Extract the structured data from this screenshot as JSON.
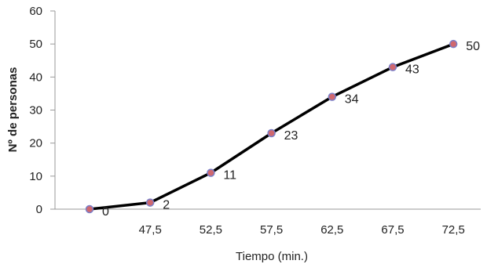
{
  "chart_data": {
    "type": "line",
    "title": "",
    "xlabel": "Tiempo (min.)",
    "ylabel": "Nº de personas",
    "categories": [
      "",
      "47,5",
      "52,5",
      "57,5",
      "62,5",
      "67,5",
      "72,5"
    ],
    "series": [
      {
        "values": [
          0,
          2,
          11,
          23,
          34,
          43,
          50
        ],
        "data_labels": [
          "0",
          "2",
          "11",
          "23",
          "34",
          "43",
          "50"
        ]
      }
    ],
    "ylim": [
      0,
      60
    ],
    "yticks": [
      "0",
      "10",
      "20",
      "30",
      "40",
      "50",
      "60"
    ],
    "grid": false,
    "legend": "none",
    "colors": {
      "line": "#000000",
      "marker_fill": "#d0686f",
      "marker_stroke": "#7a7fc8",
      "axis": "#999999"
    }
  }
}
